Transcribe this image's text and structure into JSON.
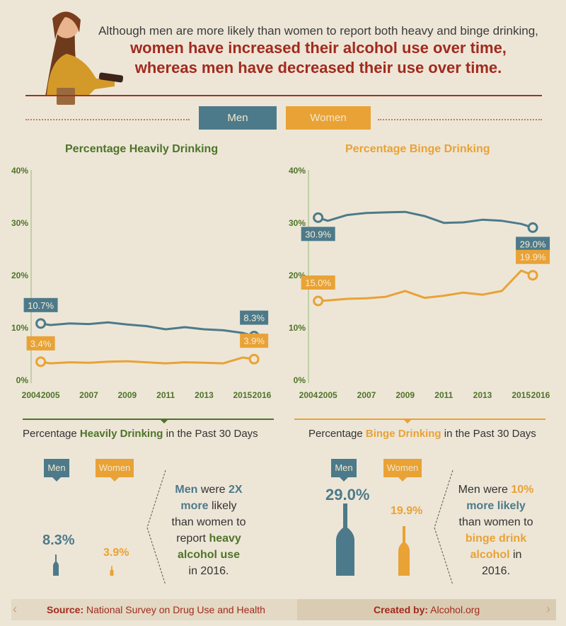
{
  "header": {
    "line1": "Although men are more likely than women to report both heavy and binge drinking,",
    "line2": "women have increased their alcohol use over time,",
    "line3": "whereas men have decreased their use over time."
  },
  "legend": {
    "men": "Men",
    "women": "Women"
  },
  "colors": {
    "men": "#4d7a8a",
    "women": "#e9a235",
    "green": "#4e7428",
    "red": "#a22a1e",
    "axis": "#c2cfa6"
  },
  "chart_data": [
    {
      "type": "line",
      "title": "Percentage Heavily Drinking",
      "x_ticks": [
        "2004",
        "2005",
        "2007",
        "2009",
        "2011",
        "2013",
        "2015",
        "2016"
      ],
      "y_ticks": [
        "0%",
        "10%",
        "20%",
        "30%",
        "40%"
      ],
      "ylim": [
        0,
        40
      ],
      "xlim": [
        2004,
        2016
      ],
      "series": [
        {
          "name": "Men",
          "x": [
            2004.5,
            2005,
            2006,
            2007,
            2008,
            2009,
            2010,
            2011,
            2012,
            2013,
            2014,
            2015,
            2015.6
          ],
          "values": [
            10.7,
            10.4,
            10.7,
            10.6,
            10.9,
            10.5,
            10.2,
            9.6,
            10.0,
            9.6,
            9.4,
            8.9,
            8.3
          ],
          "start_label": "10.7%",
          "end_label": "8.3%"
        },
        {
          "name": "Women",
          "x": [
            2004.5,
            2005,
            2006,
            2007,
            2008,
            2009,
            2010,
            2011,
            2012,
            2013,
            2014,
            2015,
            2015.6
          ],
          "values": [
            3.4,
            3.1,
            3.3,
            3.2,
            3.4,
            3.5,
            3.3,
            3.1,
            3.3,
            3.2,
            3.1,
            4.2,
            3.9
          ],
          "start_label": "3.4%",
          "end_label": "3.9%"
        }
      ]
    },
    {
      "type": "line",
      "title": "Percentage Binge Drinking",
      "x_ticks": [
        "2004",
        "2005",
        "2007",
        "2009",
        "2011",
        "2013",
        "2015",
        "2016"
      ],
      "y_ticks": [
        "0%",
        "10%",
        "20%",
        "30%",
        "40%"
      ],
      "ylim": [
        0,
        40
      ],
      "xlim": [
        2004,
        2016
      ],
      "series": [
        {
          "name": "Men",
          "x": [
            2004.5,
            2005,
            2006,
            2007,
            2008,
            2009,
            2010,
            2011,
            2012,
            2013,
            2014,
            2015,
            2015.6
          ],
          "values": [
            30.9,
            30.3,
            31.4,
            31.8,
            31.9,
            32.0,
            31.2,
            29.9,
            30.0,
            30.5,
            30.3,
            29.7,
            29.0
          ],
          "start_label": "30.9%",
          "end_label": "29.0%"
        },
        {
          "name": "Women",
          "x": [
            2004.5,
            2005,
            2006,
            2007,
            2008,
            2009,
            2010,
            2011,
            2012,
            2013,
            2014,
            2015,
            2015.6
          ],
          "values": [
            15.0,
            15.1,
            15.4,
            15.5,
            15.8,
            16.9,
            15.6,
            16.0,
            16.6,
            16.2,
            16.9,
            20.8,
            19.9
          ],
          "start_label": "15.0%",
          "end_label": "19.9%"
        }
      ]
    }
  ],
  "heavy": {
    "subtitle_pre": "Percentage ",
    "subtitle_em": "Heavily Drinking",
    "subtitle_post": " in the Past 30 Days",
    "men_tag": "Men",
    "women_tag": "Women",
    "men_value": "8.3%",
    "women_value": "3.9%",
    "men_level": 8.3,
    "women_level": 3.9,
    "note": {
      "p1": "Men",
      "p2": " were ",
      "p3": "2X",
      "p4": "more",
      "p5": " likely",
      "p6": "than women to",
      "p7": "report ",
      "p8": "heavy",
      "p9": "alcohol use",
      "p10": "in 2016."
    }
  },
  "binge": {
    "subtitle_pre": "Percentage ",
    "subtitle_em": "Binge Drinking",
    "subtitle_post": " in the Past 30 Days",
    "men_tag": "Men",
    "women_tag": "Women",
    "men_value": "29.0%",
    "women_value": "19.9%",
    "men_level": 29.0,
    "women_level": 19.9,
    "note": {
      "p1": "Men were ",
      "p2": "10%",
      "p3": "more likely",
      "p4": "than women to",
      "p5": "binge drink",
      "p6": "alcohol",
      "p7": " in",
      "p8": "2016."
    }
  },
  "footer": {
    "source_label": "Source:",
    "source_text": " National Survey on Drug Use and Health",
    "created_label": "Created by:",
    "created_text": " Alcohol.org"
  }
}
